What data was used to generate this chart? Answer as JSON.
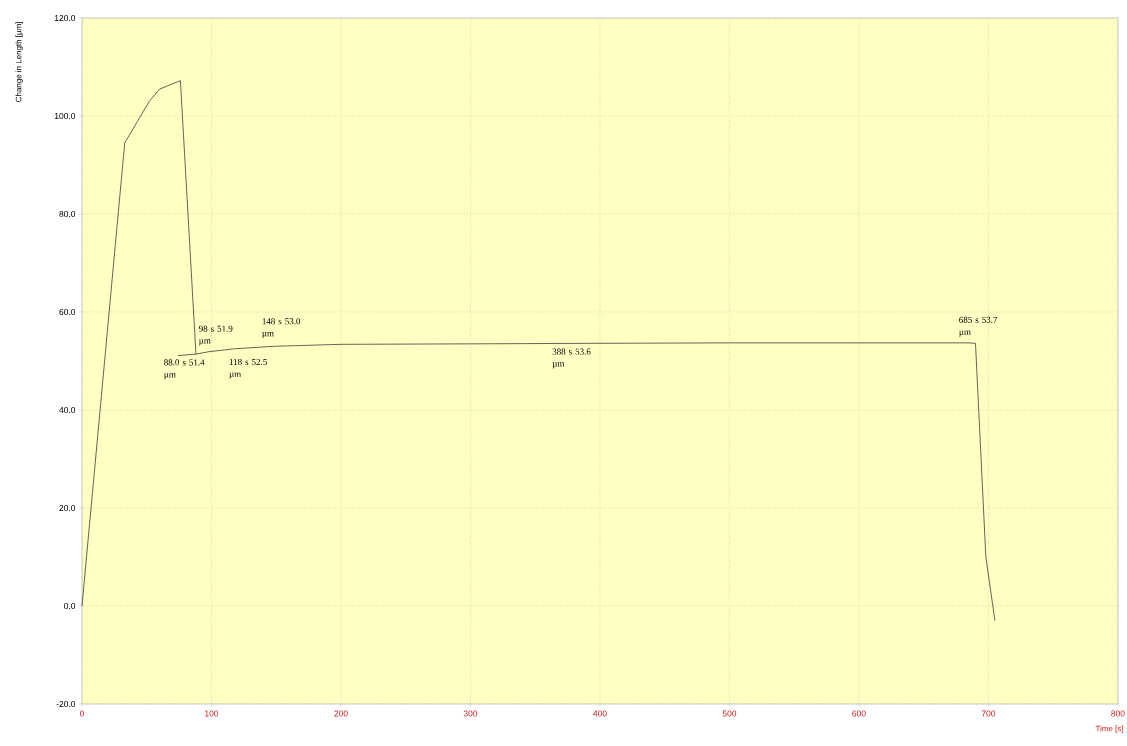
{
  "chart_data": {
    "type": "line",
    "xlabel": "Time  [s]",
    "ylabel": "Change in Length  [µm]",
    "series": [
      {
        "color": "#3c3c3c",
        "x": [
          0,
          33,
          52,
          60,
          74,
          76,
          88,
          98,
          118,
          148,
          200,
          300,
          388,
          500,
          685,
          690,
          698,
          705
        ],
        "values": [
          0,
          94.5,
          103,
          105.5,
          107,
          107.2,
          51.4,
          51.9,
          52.5,
          53.0,
          53.4,
          53.5,
          53.6,
          53.7,
          53.7,
          53.6,
          10,
          -3
        ]
      },
      {
        "color": "#3c3c3c",
        "x": [
          74,
          88
        ],
        "values": [
          51.1,
          51.4
        ]
      }
    ],
    "xlim": [
      0,
      800
    ],
    "ylim": [
      -20,
      120
    ],
    "xticks": [
      0,
      100,
      200,
      300,
      400,
      500,
      600,
      700,
      800
    ],
    "yticks": [
      {
        "value": -20,
        "label": "-20.0"
      },
      {
        "value": 0,
        "label": "0.0"
      },
      {
        "value": 20,
        "label": "20.0"
      },
      {
        "value": 40,
        "label": "40.0"
      },
      {
        "value": 60,
        "label": "60.0"
      },
      {
        "value": 80,
        "label": "80.0"
      },
      {
        "value": 100,
        "label": "100.0"
      },
      {
        "value": 120,
        "label": "120.0"
      }
    ],
    "grid": true,
    "annotations": [
      {
        "text": "98 s 51.9 µm",
        "x": 98,
        "y": 51.9
      },
      {
        "text": "148 s 53.0 µm",
        "x": 148,
        "y": 53.0
      },
      {
        "text": "88.0 s 51.4 µm",
        "x": 88,
        "y": 51.4
      },
      {
        "text": "118 s 52.5 µm",
        "x": 118,
        "y": 52.5
      },
      {
        "text": "388 s 53.6 µm",
        "x": 388,
        "y": 53.6
      },
      {
        "text": "685 s 53.7 µm",
        "x": 685,
        "y": 53.7
      }
    ]
  }
}
